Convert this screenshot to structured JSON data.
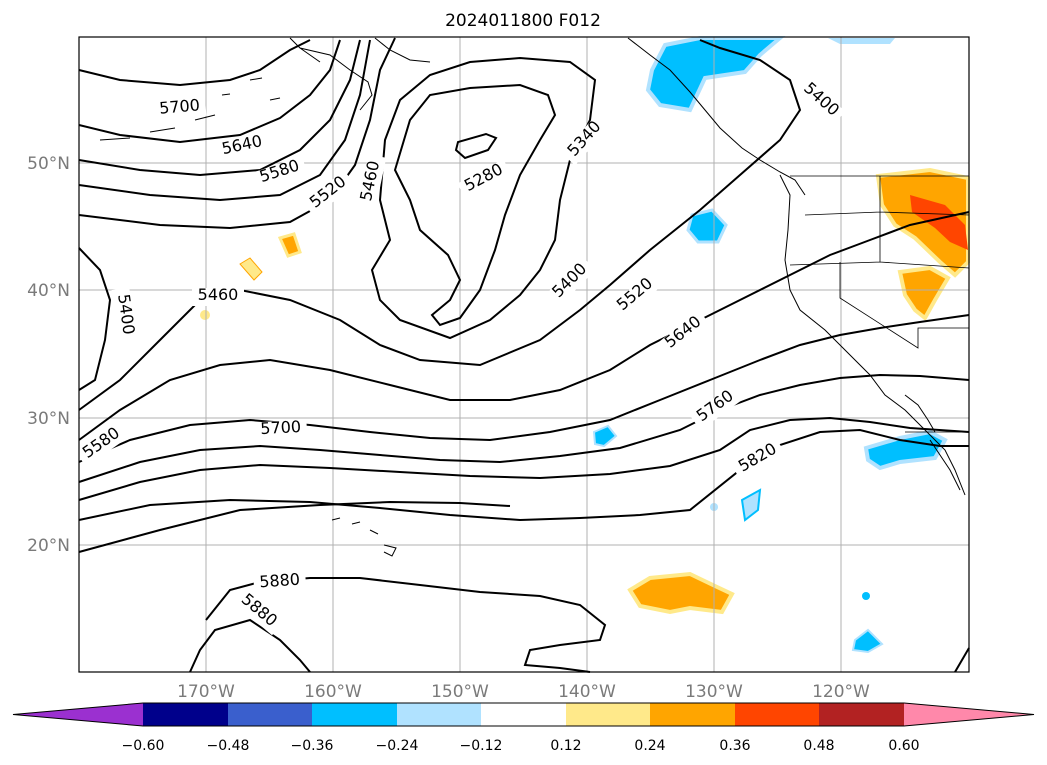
{
  "title": "2024011800 F012",
  "map": {
    "lat_labels": [
      "50°N",
      "40°N",
      "30°N",
      "20°N"
    ],
    "lon_labels": [
      "170°W",
      "160°W",
      "150°W",
      "140°W",
      "130°W",
      "120°W"
    ],
    "gridlines": true
  },
  "contours": {
    "labels": [
      "5700",
      "5640",
      "5580",
      "5520",
      "5460",
      "5280",
      "5340",
      "5400",
      "5400",
      "5460",
      "5400",
      "5520",
      "5640",
      "5760",
      "5580",
      "5700",
      "5820",
      "5880",
      "5880"
    ]
  },
  "colorbar": {
    "ticks": [
      "−0.60",
      "−0.48",
      "−0.36",
      "−0.24",
      "−0.12",
      "0.12",
      "0.24",
      "0.36",
      "0.48",
      "0.60"
    ],
    "colors": [
      "#9b30d0",
      "#00008b",
      "#3a5fcd",
      "#00bfff",
      "#b0e2ff",
      "#ffffff",
      "#ffe98a",
      "#ffa500",
      "#ff4500",
      "#b22222",
      "#ff88aa"
    ]
  }
}
